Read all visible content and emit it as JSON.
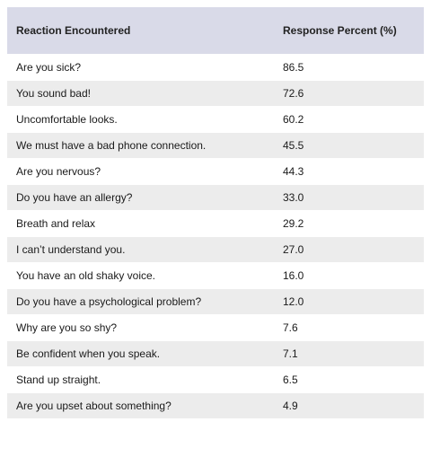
{
  "table": {
    "header": [
      "Reaction Encountered",
      "Response Percent (%)"
    ],
    "rows": [
      [
        "Are you sick?",
        "86.5"
      ],
      [
        "You sound bad!",
        "72.6"
      ],
      [
        "Uncomfortable looks.",
        "60.2"
      ],
      [
        "We must have a bad phone connection.",
        "45.5"
      ],
      [
        "Are you nervous?",
        "44.3"
      ],
      [
        "Do you have an allergy?",
        "33.0"
      ],
      [
        "Breath and relax",
        "29.2"
      ],
      [
        "I can’t understand you.",
        "27.0"
      ],
      [
        "You have an old shaky voice.",
        "16.0"
      ],
      [
        "Do you have a psychological problem?",
        "12.0"
      ],
      [
        "Why are you so shy?",
        "7.6"
      ],
      [
        "Be confident when you speak.",
        "7.1"
      ],
      [
        "Stand up straight.",
        "6.5"
      ],
      [
        "Are you upset about something?",
        "4.9"
      ]
    ]
  }
}
